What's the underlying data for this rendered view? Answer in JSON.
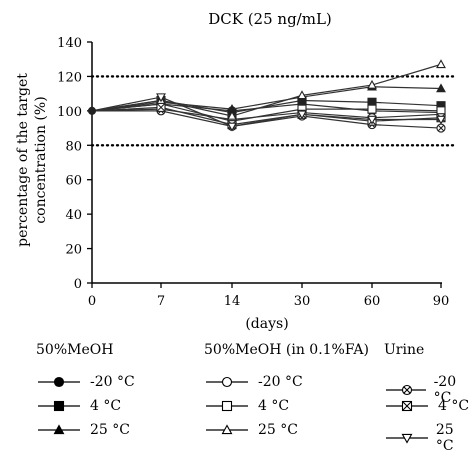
{
  "chart_data": {
    "type": "line",
    "title": "DCK (25 ng/mL)",
    "xlabel": "(days)",
    "ylabel": "percentage of the target concentration (%)",
    "ylabel_lines": [
      "percentage of the target",
      "concentration (%)"
    ],
    "categories": [
      "0",
      "7",
      "14",
      "30",
      "60",
      "90"
    ],
    "ylim": [
      0,
      140
    ],
    "yticks": [
      "0",
      "20",
      "40",
      "60",
      "80",
      "100",
      "120",
      "140"
    ],
    "reference_lines": [
      120,
      80
    ],
    "legend_groups": [
      {
        "title": "50%MeOH",
        "items": [
          "-20 °C",
          "4 °C",
          "25 °C"
        ]
      },
      {
        "title": "50%MeOH (in 0.1%FA)",
        "items": [
          "-20 °C",
          "4 °C",
          "25 °C"
        ]
      },
      {
        "title": "Urine",
        "items": [
          "-20 °C",
          "4 °C",
          "25 °C"
        ]
      }
    ],
    "series": [
      {
        "name": "50%MeOH -20 °C",
        "marker": "circle-filled",
        "values": [
          100,
          104,
          100,
          104,
          100,
          99
        ]
      },
      {
        "name": "50%MeOH 4 °C",
        "marker": "square-filled",
        "values": [
          100,
          106,
          99,
          106,
          105,
          103
        ]
      },
      {
        "name": "50%MeOH 25 °C",
        "marker": "triangle-filled",
        "values": [
          100,
          105,
          101,
          108,
          114,
          113
        ]
      },
      {
        "name": "50%MeOH (in 0.1%FA) -20 °C",
        "marker": "circle-open",
        "values": [
          100,
          101,
          95,
          99,
          96,
          98
        ]
      },
      {
        "name": "50%MeOH (in 0.1%FA) 4 °C",
        "marker": "square-open",
        "values": [
          100,
          104,
          94,
          101,
          101,
          100
        ]
      },
      {
        "name": "50%MeOH (in 0.1%FA) 25 °C",
        "marker": "triangle-open",
        "values": [
          100,
          106,
          97,
          109,
          115,
          127
        ]
      },
      {
        "name": "Urine -20 °C",
        "marker": "circle-x",
        "values": [
          100,
          100,
          91,
          97,
          92,
          90
        ]
      },
      {
        "name": "Urine 4 °C",
        "marker": "square-x",
        "values": [
          100,
          102,
          92,
          98,
          94,
          96
        ]
      },
      {
        "name": "Urine 25 °C",
        "marker": "triangle-down-open",
        "values": [
          100,
          108,
          91,
          98,
          95,
          95
        ]
      }
    ],
    "colors": {
      "axis": "#000000",
      "line": "#333333",
      "marker": "#222222",
      "reference": "#000000"
    },
    "grid": false
  }
}
